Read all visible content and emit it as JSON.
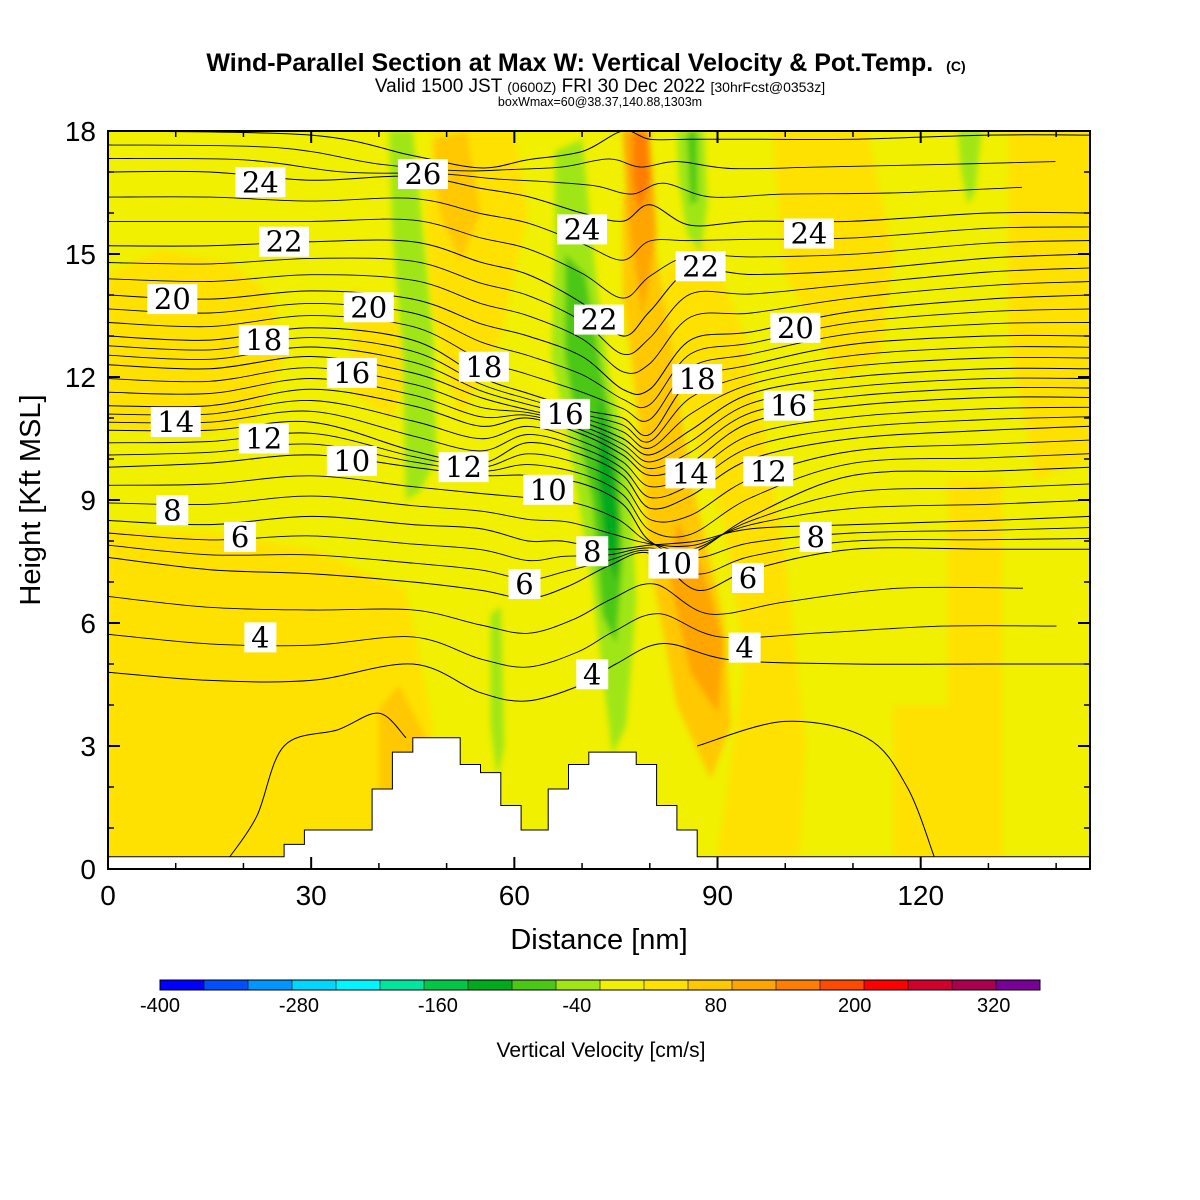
{
  "title": {
    "main": "Wind-Parallel Section at Max W: Vertical Velocity & Pot.Temp.",
    "copyright": "(C)",
    "valid_prefix": "Valid 1500 JST",
    "zulu": "(0600Z)",
    "valid_date": "FRI 30 Dec 2022",
    "forecast": "[30hrFcst@0353z]",
    "boxinfo": "boxWmax=60@38.37,140.88,1303m"
  },
  "colors": {
    "background": "#ffffff",
    "terrain": "#ffffff",
    "contour_line": "#000000",
    "palette": [
      "#0000ff",
      "#0050ff",
      "#0096ff",
      "#00d7ff",
      "#00f5ff",
      "#00e6a0",
      "#00c846",
      "#00aa1e",
      "#4bc814",
      "#a0e614",
      "#f0f000",
      "#ffe100",
      "#ffc800",
      "#ffa500",
      "#ff7d00",
      "#ff4b00",
      "#ff0000",
      "#d2002d",
      "#aa0050",
      "#780096"
    ]
  },
  "chart_data": {
    "type": "heatmap",
    "xlabel": "Distance [nm]",
    "ylabel": "Height [Kft MSL]",
    "xlim": [
      0,
      145
    ],
    "ylim": [
      0,
      18
    ],
    "xticks": [
      0,
      30,
      60,
      90,
      120
    ],
    "yticks": [
      0,
      3,
      6,
      9,
      12,
      15,
      18
    ],
    "colorbar": {
      "title": "Vertical Velocity [cm/s]",
      "min": -400,
      "max": 360,
      "step": 40,
      "tick_values": [
        -400,
        -280,
        -160,
        -40,
        80,
        200,
        320
      ]
    },
    "terrain_profile": {
      "x": [
        0,
        26,
        26,
        29,
        29,
        39,
        39,
        42,
        42,
        45,
        45,
        52,
        52,
        55,
        55,
        58,
        58,
        61,
        61,
        65,
        65,
        68,
        68,
        71,
        71,
        78,
        78,
        81,
        81,
        84,
        84,
        87,
        87,
        145
      ],
      "height": [
        0.3,
        0.3,
        0.6,
        0.6,
        0.95,
        0.95,
        1.95,
        1.95,
        2.85,
        2.85,
        3.2,
        3.2,
        2.55,
        2.55,
        2.35,
        2.35,
        1.55,
        1.55,
        0.95,
        0.95,
        1.95,
        1.95,
        2.55,
        2.55,
        2.85,
        2.85,
        2.55,
        2.55,
        1.55,
        1.55,
        0.95,
        0.95,
        0.3,
        0.3
      ]
    },
    "theta_contours": [
      {
        "label": "4",
        "points": [
          [
            0,
            4.8
          ],
          [
            15,
            4.6
          ],
          [
            30,
            4.6
          ],
          [
            45,
            5.0
          ],
          [
            55,
            4.3
          ],
          [
            62,
            4.1
          ],
          [
            70,
            4.5
          ],
          [
            75,
            5.0
          ],
          [
            82,
            5.5
          ],
          [
            92,
            5.1
          ],
          [
            110,
            5.0
          ],
          [
            130,
            5.0
          ],
          [
            145,
            5.0
          ]
        ]
      },
      {
        "label": "6",
        "points": [
          [
            0,
            7.6
          ],
          [
            15,
            7.3
          ],
          [
            30,
            7.2
          ],
          [
            45,
            7.0
          ],
          [
            55,
            6.8
          ],
          [
            62,
            6.6
          ],
          [
            68,
            6.9
          ],
          [
            74,
            7.4
          ],
          [
            80,
            7.7
          ],
          [
            87,
            6.8
          ],
          [
            95,
            7.3
          ],
          [
            110,
            7.8
          ],
          [
            130,
            7.8
          ],
          [
            145,
            7.8
          ]
        ]
      },
      {
        "label": "8",
        "points": [
          [
            0,
            8.5
          ],
          [
            15,
            8.4
          ],
          [
            30,
            8.6
          ],
          [
            45,
            8.4
          ],
          [
            55,
            8.3
          ],
          [
            62,
            8.0
          ],
          [
            67,
            8.0
          ],
          [
            74,
            7.8
          ],
          [
            80,
            7.9
          ],
          [
            87,
            8.0
          ],
          [
            95,
            8.3
          ],
          [
            110,
            8.4
          ],
          [
            130,
            8.5
          ],
          [
            145,
            8.6
          ]
        ]
      },
      {
        "label": "10",
        "points": [
          [
            0,
            9.8
          ],
          [
            15,
            9.9
          ],
          [
            30,
            10.1
          ],
          [
            45,
            9.8
          ],
          [
            55,
            9.6
          ],
          [
            62,
            9.6
          ],
          [
            70,
            9.4
          ],
          [
            76,
            8.9
          ],
          [
            80,
            8.0
          ],
          [
            86,
            7.7
          ],
          [
            95,
            8.6
          ],
          [
            110,
            9.6
          ],
          [
            130,
            9.7
          ],
          [
            145,
            9.8
          ]
        ]
      },
      {
        "label": "12",
        "points": [
          [
            0,
            10.7
          ],
          [
            15,
            10.7
          ],
          [
            30,
            10.9
          ],
          [
            45,
            10.2
          ],
          [
            55,
            9.9
          ],
          [
            62,
            10.4
          ],
          [
            70,
            10.1
          ],
          [
            76,
            9.6
          ],
          [
            80,
            8.8
          ],
          [
            86,
            9.1
          ],
          [
            95,
            10.0
          ],
          [
            110,
            10.5
          ],
          [
            130,
            10.7
          ],
          [
            145,
            10.8
          ]
        ]
      },
      {
        "label": "14",
        "points": [
          [
            0,
            11.3
          ],
          [
            15,
            11.3
          ],
          [
            30,
            11.7
          ],
          [
            45,
            11.3
          ],
          [
            55,
            10.8
          ],
          [
            62,
            11.0
          ],
          [
            70,
            10.6
          ],
          [
            76,
            10.1
          ],
          [
            80,
            9.6
          ],
          [
            86,
            9.9
          ],
          [
            95,
            10.9
          ],
          [
            110,
            11.3
          ],
          [
            130,
            11.5
          ],
          [
            145,
            11.5
          ]
        ]
      },
      {
        "label": "16",
        "points": [
          [
            0,
            12.3
          ],
          [
            15,
            12.2
          ],
          [
            30,
            12.5
          ],
          [
            45,
            12.1
          ],
          [
            55,
            11.5
          ],
          [
            62,
            11.2
          ],
          [
            70,
            10.9
          ],
          [
            76,
            10.5
          ],
          [
            80,
            10.1
          ],
          [
            86,
            10.7
          ],
          [
            95,
            11.6
          ],
          [
            110,
            12.0
          ],
          [
            130,
            12.2
          ],
          [
            145,
            12.2
          ]
        ]
      },
      {
        "label": "18",
        "points": [
          [
            0,
            13.0
          ],
          [
            15,
            12.9
          ],
          [
            30,
            13.2
          ],
          [
            45,
            12.9
          ],
          [
            55,
            12.0
          ],
          [
            62,
            11.6
          ],
          [
            70,
            11.2
          ],
          [
            76,
            11.0
          ],
          [
            80,
            10.6
          ],
          [
            86,
            11.9
          ],
          [
            95,
            12.3
          ],
          [
            110,
            12.8
          ],
          [
            130,
            13.0
          ],
          [
            145,
            13.0
          ]
        ]
      },
      {
        "label": "20",
        "points": [
          [
            0,
            14.0
          ],
          [
            15,
            13.9
          ],
          [
            30,
            14.1
          ],
          [
            45,
            13.9
          ],
          [
            55,
            13.3
          ],
          [
            62,
            13.0
          ],
          [
            70,
            12.5
          ],
          [
            76,
            11.7
          ],
          [
            80,
            11.7
          ],
          [
            86,
            12.9
          ],
          [
            95,
            13.1
          ],
          [
            110,
            13.6
          ],
          [
            130,
            13.9
          ],
          [
            145,
            14.0
          ]
        ]
      },
      {
        "label": "22",
        "points": [
          [
            0,
            15.2
          ],
          [
            15,
            15.2
          ],
          [
            30,
            15.3
          ],
          [
            45,
            15.3
          ],
          [
            55,
            14.8
          ],
          [
            62,
            14.5
          ],
          [
            70,
            13.8
          ],
          [
            76,
            13.0
          ],
          [
            80,
            13.6
          ],
          [
            86,
            14.6
          ],
          [
            95,
            14.5
          ],
          [
            110,
            14.6
          ],
          [
            130,
            14.9
          ],
          [
            145,
            15.0
          ]
        ]
      },
      {
        "label": "24",
        "points": [
          [
            0,
            17.0
          ],
          [
            15,
            17.0
          ],
          [
            30,
            16.8
          ],
          [
            45,
            16.9
          ],
          [
            55,
            16.6
          ],
          [
            62,
            16.4
          ],
          [
            70,
            16.0
          ],
          [
            76,
            15.8
          ],
          [
            80,
            16.2
          ],
          [
            86,
            15.7
          ],
          [
            95,
            15.8
          ],
          [
            110,
            15.8
          ],
          [
            130,
            16.0
          ],
          [
            145,
            16.0
          ]
        ]
      },
      {
        "label": "26",
        "points": [
          [
            0,
            18.0
          ],
          [
            30,
            17.9
          ],
          [
            45,
            17.4
          ],
          [
            55,
            17.1
          ],
          [
            62,
            17.3
          ],
          [
            70,
            17.5
          ],
          [
            76,
            18.0
          ],
          [
            80,
            17.8
          ],
          [
            86,
            17.8
          ],
          [
            95,
            17.8
          ],
          [
            110,
            17.8
          ],
          [
            130,
            17.9
          ],
          [
            145,
            17.9
          ]
        ]
      }
    ],
    "contour_labels": [
      {
        "text": "24",
        "x": 22.5,
        "y": 16.75
      },
      {
        "text": "26",
        "x": 46.5,
        "y": 16.95
      },
      {
        "text": "24",
        "x": 70.0,
        "y": 15.6
      },
      {
        "text": "22",
        "x": 26.0,
        "y": 15.3
      },
      {
        "text": "22",
        "x": 87.5,
        "y": 14.7
      },
      {
        "text": "24",
        "x": 103.5,
        "y": 15.5
      },
      {
        "text": "20",
        "x": 9.5,
        "y": 13.9
      },
      {
        "text": "20",
        "x": 38.5,
        "y": 13.7
      },
      {
        "text": "22",
        "x": 72.5,
        "y": 13.4
      },
      {
        "text": "20",
        "x": 101.5,
        "y": 13.2
      },
      {
        "text": "18",
        "x": 23.0,
        "y": 12.9
      },
      {
        "text": "16",
        "x": 36.0,
        "y": 12.1
      },
      {
        "text": "18",
        "x": 55.5,
        "y": 12.25
      },
      {
        "text": "18",
        "x": 87.0,
        "y": 11.95
      },
      {
        "text": "14",
        "x": 10.0,
        "y": 10.9
      },
      {
        "text": "16",
        "x": 67.5,
        "y": 11.1
      },
      {
        "text": "16",
        "x": 100.5,
        "y": 11.3
      },
      {
        "text": "12",
        "x": 23.0,
        "y": 10.5
      },
      {
        "text": "10",
        "x": 36.0,
        "y": 9.95
      },
      {
        "text": "12",
        "x": 52.5,
        "y": 9.8
      },
      {
        "text": "10",
        "x": 65.0,
        "y": 9.25
      },
      {
        "text": "14",
        "x": 86.0,
        "y": 9.65
      },
      {
        "text": "12",
        "x": 97.5,
        "y": 9.7
      },
      {
        "text": "8",
        "x": 9.5,
        "y": 8.75
      },
      {
        "text": "6",
        "x": 19.5,
        "y": 8.1
      },
      {
        "text": "8",
        "x": 71.5,
        "y": 7.75
      },
      {
        "text": "10",
        "x": 83.5,
        "y": 7.45
      },
      {
        "text": "8",
        "x": 104.5,
        "y": 8.1
      },
      {
        "text": "6",
        "x": 61.5,
        "y": 6.95
      },
      {
        "text": "6",
        "x": 94.5,
        "y": 7.1
      },
      {
        "text": "4",
        "x": 22.5,
        "y": 5.65
      },
      {
        "text": "4",
        "x": 94.0,
        "y": 5.4
      },
      {
        "text": "4",
        "x": 71.5,
        "y": 4.75
      }
    ]
  }
}
